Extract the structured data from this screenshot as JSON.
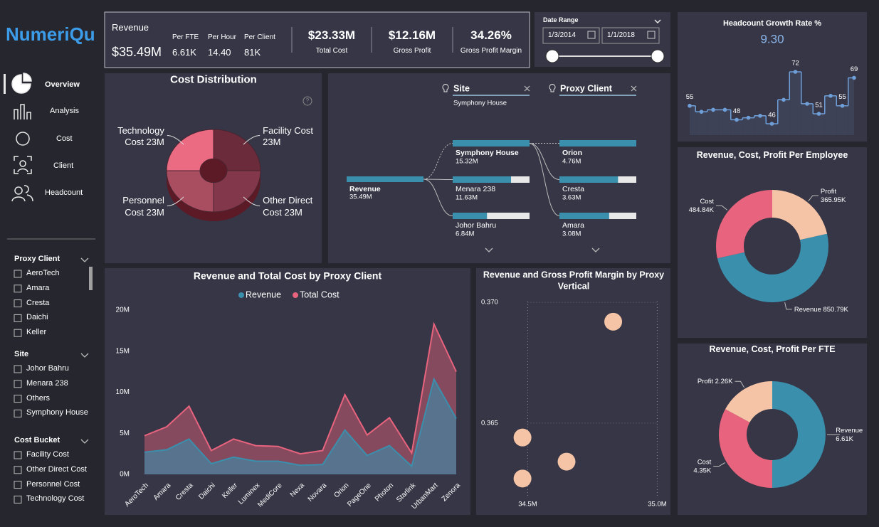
{
  "brand": "NumeriQu",
  "nav": [
    "Overview",
    "Analysis",
    "Cost",
    "Client",
    "Headcount"
  ],
  "filters": [
    {
      "title": "Proxy Client",
      "items": [
        "AeroTech",
        "Amara",
        "Cresta",
        "Daichi",
        "Keller"
      ]
    },
    {
      "title": "Site",
      "items": [
        "Johor Bahru",
        "Menara 238",
        "Others",
        "Symphony House"
      ]
    },
    {
      "title": "Cost Bucket",
      "items": [
        "Facility Cost",
        "Other Direct Cost",
        "Personnel Cost",
        "Technology Cost"
      ]
    }
  ],
  "kpis": {
    "title": "Revenue",
    "value": "$35.49M",
    "details": [
      {
        "label": "Per FTE",
        "value": "6.61K"
      },
      {
        "label": "Per Hour",
        "value": "14.40"
      },
      {
        "label": "Per Client",
        "value": "81K"
      }
    ],
    "cards": [
      {
        "value": "$23.33M",
        "label": "Total Cost"
      },
      {
        "value": "$12.16M",
        "label": "Gross Profit"
      },
      {
        "value": "34.26%",
        "label": "Gross Profit Margin"
      }
    ]
  },
  "date_range": {
    "title": "Date Range",
    "start": "1/3/2014",
    "end": "1/1/2018"
  },
  "chart_data": [
    {
      "type": "line",
      "title": "Headcount Growth Rate %",
      "subtitle": "9.30",
      "step": true,
      "color": "#6f9fd8",
      "values": [
        55,
        52,
        53,
        53,
        48,
        49,
        50,
        46,
        58,
        72,
        56,
        51,
        60,
        55,
        69
      ],
      "value_labels": [
        "55",
        null,
        null,
        null,
        "48",
        null,
        null,
        "46",
        null,
        "72",
        null,
        "51",
        null,
        "55",
        "69"
      ]
    },
    {
      "type": "pie",
      "title": "Cost Distribution",
      "categories": [
        "Facility Cost",
        "Other Direct Cost",
        "Personnel Cost",
        "Technology Cost"
      ],
      "values": [
        23,
        23,
        23,
        23
      ],
      "value_labels": [
        "23M",
        "23M",
        "23M",
        "23M"
      ],
      "colors": [
        "#6b2b3a",
        "#82384a",
        "#a94d61",
        "#ea6b82"
      ]
    },
    {
      "type": "decomposition",
      "color": "#3a8fad",
      "root": {
        "name": "Revenue",
        "value": 35.49,
        "value_label": "35.49M"
      },
      "levels": [
        {
          "field": "Site",
          "selected": "Symphony House",
          "categories": [
            "Symphony House",
            "Menara 238",
            "Johor Bahru"
          ],
          "values": [
            15.32,
            11.63,
            6.84
          ],
          "value_labels": [
            "15.32M",
            "11.63M",
            "6.84M"
          ]
        },
        {
          "field": "Proxy Client",
          "categories": [
            "Orion",
            "Cresta",
            "Amara"
          ],
          "values": [
            4.76,
            3.63,
            3.08
          ],
          "value_labels": [
            "4.76M",
            "3.63M",
            "3.08M"
          ]
        }
      ]
    },
    {
      "type": "area",
      "title": "Revenue and Total Cost by Proxy Client",
      "legend": "top",
      "categories": [
        "AeroTech",
        "Amara",
        "Cresta",
        "Daichi",
        "Keller",
        "Luminex",
        "MediCore",
        "Nexa",
        "Novara",
        "Orion",
        "PageOne",
        "Photon",
        "Starlink",
        "UrbanMart",
        "Zenora"
      ],
      "series": [
        {
          "name": "Revenue",
          "color": "#3a8fad",
          "values": [
            2.7,
            3.0,
            4.3,
            1.3,
            2.1,
            1.6,
            1.6,
            1.1,
            1.2,
            5.4,
            2.3,
            3.5,
            1.0,
            11.6,
            6.8
          ]
        },
        {
          "name": "Total Cost",
          "color": "#e8637d",
          "values": [
            4.7,
            5.8,
            8.3,
            2.9,
            4.3,
            3.5,
            3.4,
            2.5,
            2.9,
            9.7,
            4.8,
            6.9,
            2.6,
            18.3,
            12.5
          ]
        }
      ],
      "ylim": [
        0,
        20
      ],
      "yticks": [
        {
          "value": 0,
          "label": "0M"
        },
        {
          "value": 5,
          "label": "5M"
        },
        {
          "value": 10,
          "label": "10M"
        },
        {
          "value": 15,
          "label": "15M"
        },
        {
          "value": 20,
          "label": "20M"
        }
      ]
    },
    {
      "type": "scatter",
      "title": "Revenue and Gross Profit Margin by Proxy Vertical",
      "color": "#f5c4a6",
      "x": [
        34.48,
        34.48,
        34.65,
        34.83
      ],
      "values": [
        0.3644,
        0.3627,
        0.3634,
        0.3692
      ],
      "xlim": [
        34.4,
        35.04
      ],
      "ylim": [
        0.3619,
        0.3703
      ],
      "xticks": [
        {
          "value": 34.5,
          "label": "34.5M"
        },
        {
          "value": 35,
          "label": "35.0M"
        }
      ],
      "yticks": [
        0.365,
        {
          "value": 0.37,
          "label": "0.370"
        }
      ]
    },
    {
      "type": "donut",
      "title": "Revenue, Cost, Profit Per Employee",
      "categories": [
        "Profit",
        "Revenue",
        "Cost"
      ],
      "values": [
        365.95,
        850.79,
        484.84
      ],
      "value_labels": [
        "365.95K",
        "850.79K",
        "484.84K"
      ],
      "colors": [
        "#f5c4a6",
        "#3a8fad",
        "#e8637d"
      ]
    },
    {
      "type": "donut",
      "title": "Revenue, Cost, Profit Per FTE",
      "categories": [
        "Revenue",
        "Cost",
        "Profit"
      ],
      "values": [
        6.61,
        4.35,
        2.26
      ],
      "value_labels": [
        "6.61K",
        "4.35K",
        "2.26K"
      ],
      "colors": [
        "#3a8fad",
        "#e8637d",
        "#f5c4a6"
      ]
    }
  ]
}
